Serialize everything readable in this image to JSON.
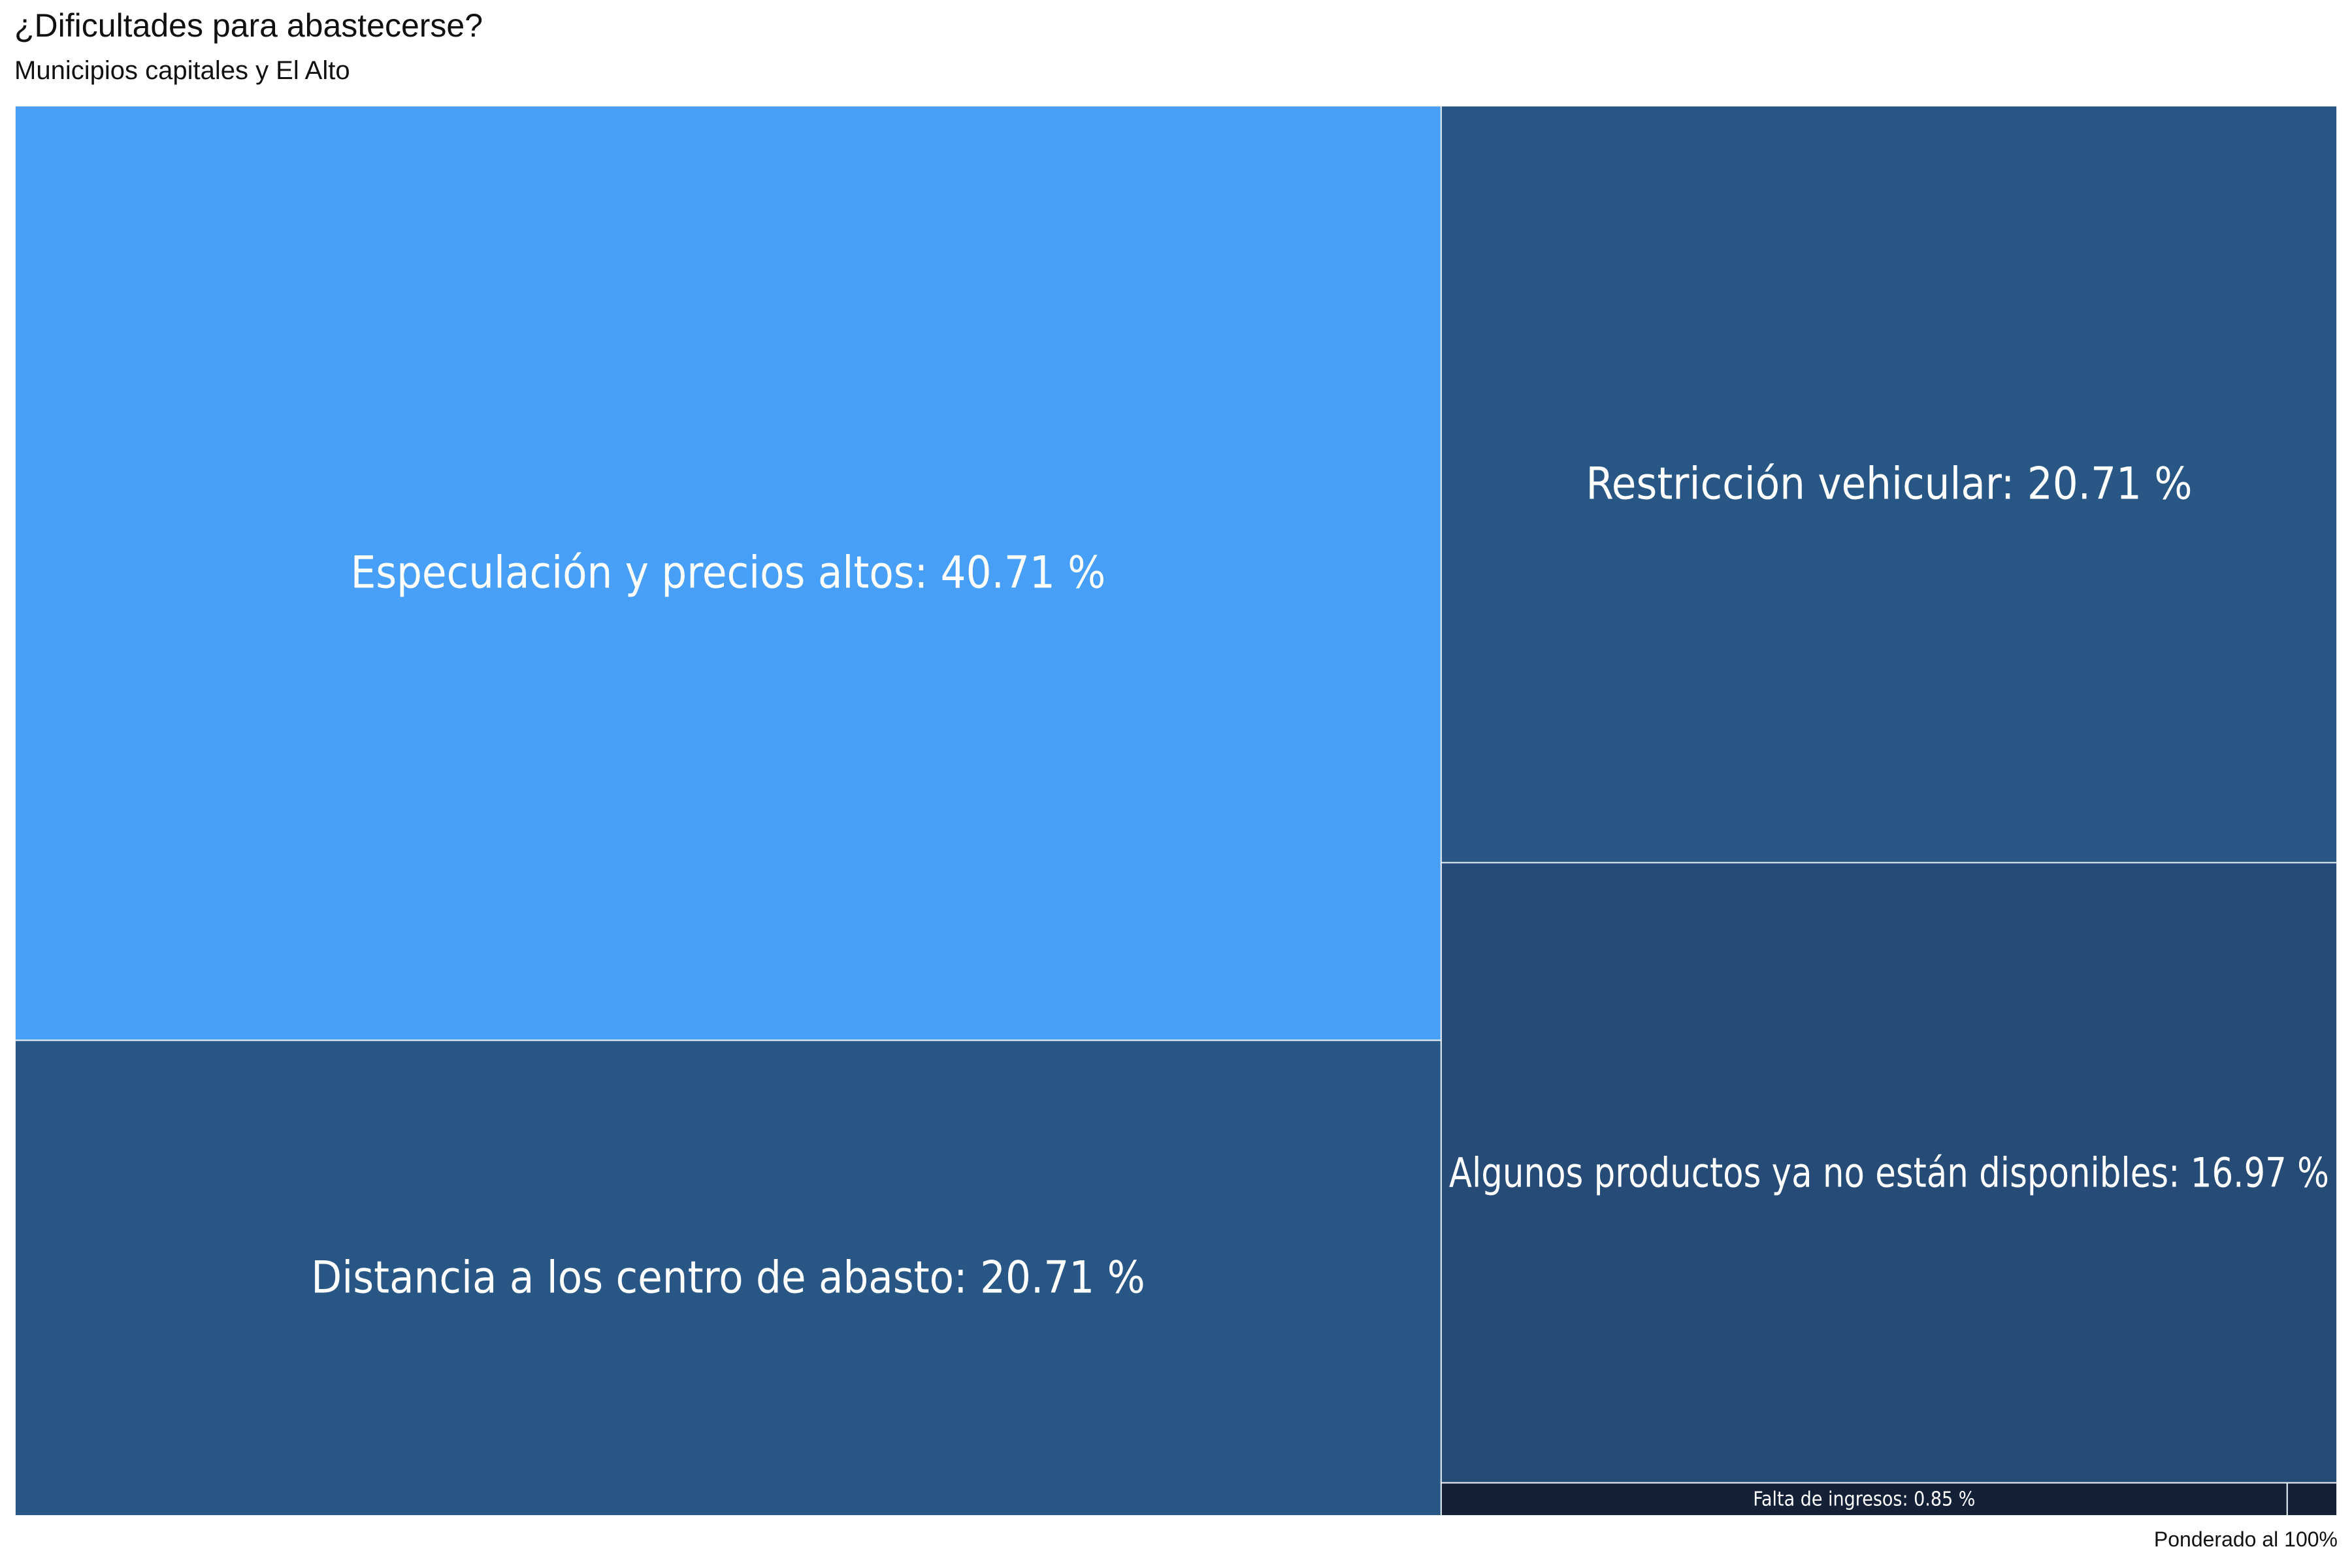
{
  "chart_data": {
    "type": "treemap",
    "title": "¿Dificultades para abastecerse?",
    "subtitle": "Municipios capitales y El Alto",
    "caption": "Ponderado al 100%",
    "unit": "%",
    "items": [
      {
        "label": "Especulación y precios altos",
        "value": 40.71,
        "color": "#479ff8"
      },
      {
        "label": "Distancia a los centro de abasto",
        "value": 20.71,
        "color": "#285786"
      },
      {
        "label": "Restricción vehicular",
        "value": 20.71,
        "color": "#285786"
      },
      {
        "label": "Algunos productos ya no están disponibles",
        "value": 16.97,
        "color": "#264b76"
      },
      {
        "label": "Falta de ingresos",
        "value": 0.85,
        "color": "#132036"
      },
      {
        "label": "",
        "value": 0.05,
        "color": "#132036"
      }
    ]
  }
}
